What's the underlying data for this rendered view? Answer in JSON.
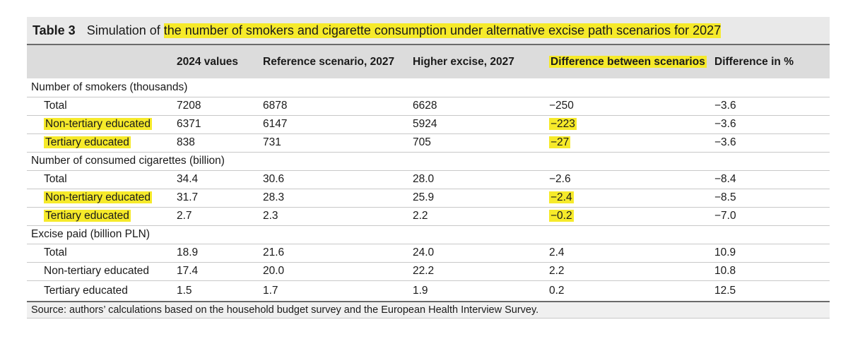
{
  "table": {
    "number": "Table 3",
    "title_pre": "Simulation of",
    "title_highlight": "the number of smokers and cigarette consumption under alternative excise path scenarios for 2027",
    "headers": [
      "",
      "2024 values",
      "Reference scenario, 2027",
      "Higher excise, 2027",
      "Difference between scenarios",
      "Difference in %"
    ],
    "sections": [
      {
        "label": "Number of smokers (thousands)",
        "rows": [
          {
            "label": "Total",
            "values": [
              "7208",
              "6878",
              "6628",
              "−250",
              "−3.6"
            ]
          },
          {
            "label": "Non-tertiary educated",
            "values": [
              "6371",
              "6147",
              "5924",
              "−223",
              "−3.6"
            ]
          },
          {
            "label": "Tertiary educated",
            "values": [
              "838",
              "731",
              "705",
              "−27",
              "−3.6"
            ]
          }
        ]
      },
      {
        "label": "Number of consumed cigarettes (billion)",
        "rows": [
          {
            "label": "Total",
            "values": [
              "34.4",
              "30.6",
              "28.0",
              "−2.6",
              "−8.4"
            ]
          },
          {
            "label": "Non-tertiary educated",
            "values": [
              "31.7",
              "28.3",
              "25.9",
              "−2.4",
              "−8.5"
            ]
          },
          {
            "label": "Tertiary educated",
            "values": [
              "2.7",
              "2.3",
              "2.2",
              "−0.2",
              "−7.0"
            ]
          }
        ]
      },
      {
        "label": "Excise paid (billion PLN)",
        "rows": [
          {
            "label": "Total",
            "values": [
              "18.9",
              "21.6",
              "24.0",
              "2.4",
              "10.9"
            ]
          },
          {
            "label": "Non-tertiary educated",
            "values": [
              "17.4",
              "20.0",
              "22.2",
              "2.2",
              "10.8"
            ]
          },
          {
            "label": "Tertiary educated",
            "values": [
              "1.5",
              "1.7",
              "1.9",
              "0.2",
              "12.5"
            ]
          }
        ]
      }
    ],
    "source": "Source: authors’ calculations based on the household budget survey and the European Health Interview Survey.",
    "highlight_color": "#f6ea2a"
  }
}
